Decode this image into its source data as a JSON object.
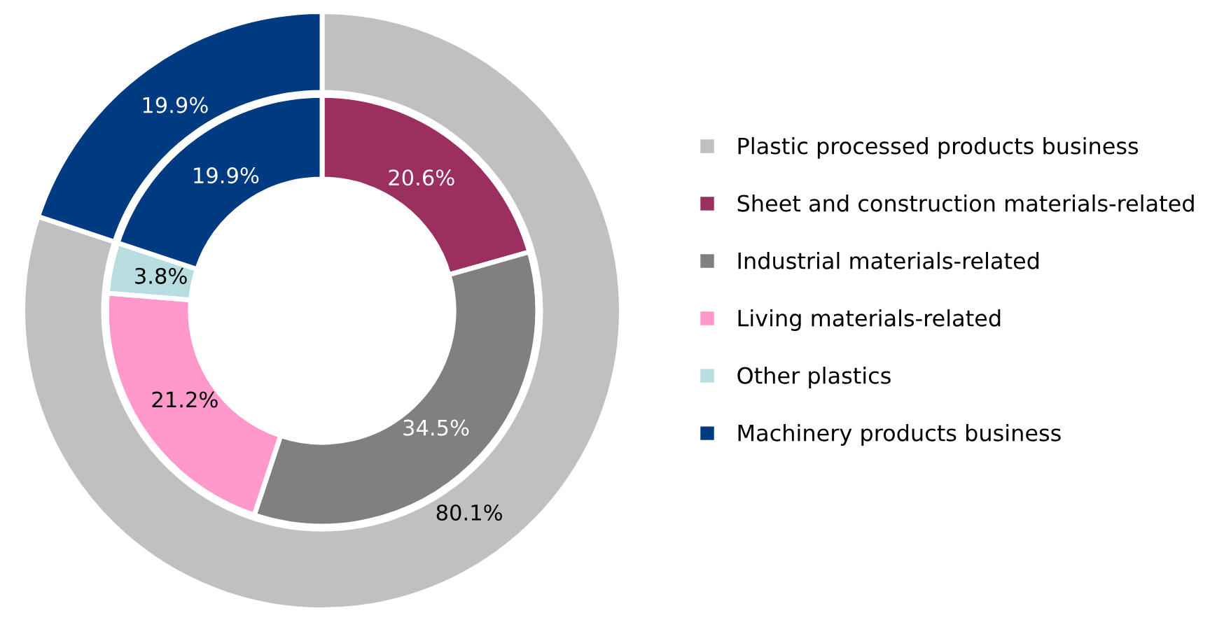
{
  "chart_data": {
    "type": "donut",
    "categories": [
      "Plastic processed products business",
      "Sheet and construction materials-related",
      "Industrial materials-related",
      "Living materials-related",
      "Other plastics",
      "Machinery products business"
    ],
    "colors": [
      "#c0c0c0",
      "#9b3060",
      "#808080",
      "#ff99cc",
      "#b7dde0",
      "#003a80"
    ],
    "series": [
      {
        "values": [
          80.1,
          null,
          null,
          null,
          null,
          19.9
        ],
        "value_labels": [
          "80.1%",
          null,
          null,
          null,
          null,
          "19.9%"
        ]
      },
      {
        "values": [
          null,
          20.6,
          34.5,
          21.2,
          3.8,
          19.9
        ],
        "value_labels": [
          null,
          "20.6%",
          "34.5%",
          "21.2%",
          "3.8%",
          "19.9%"
        ]
      }
    ],
    "legend": "right"
  }
}
